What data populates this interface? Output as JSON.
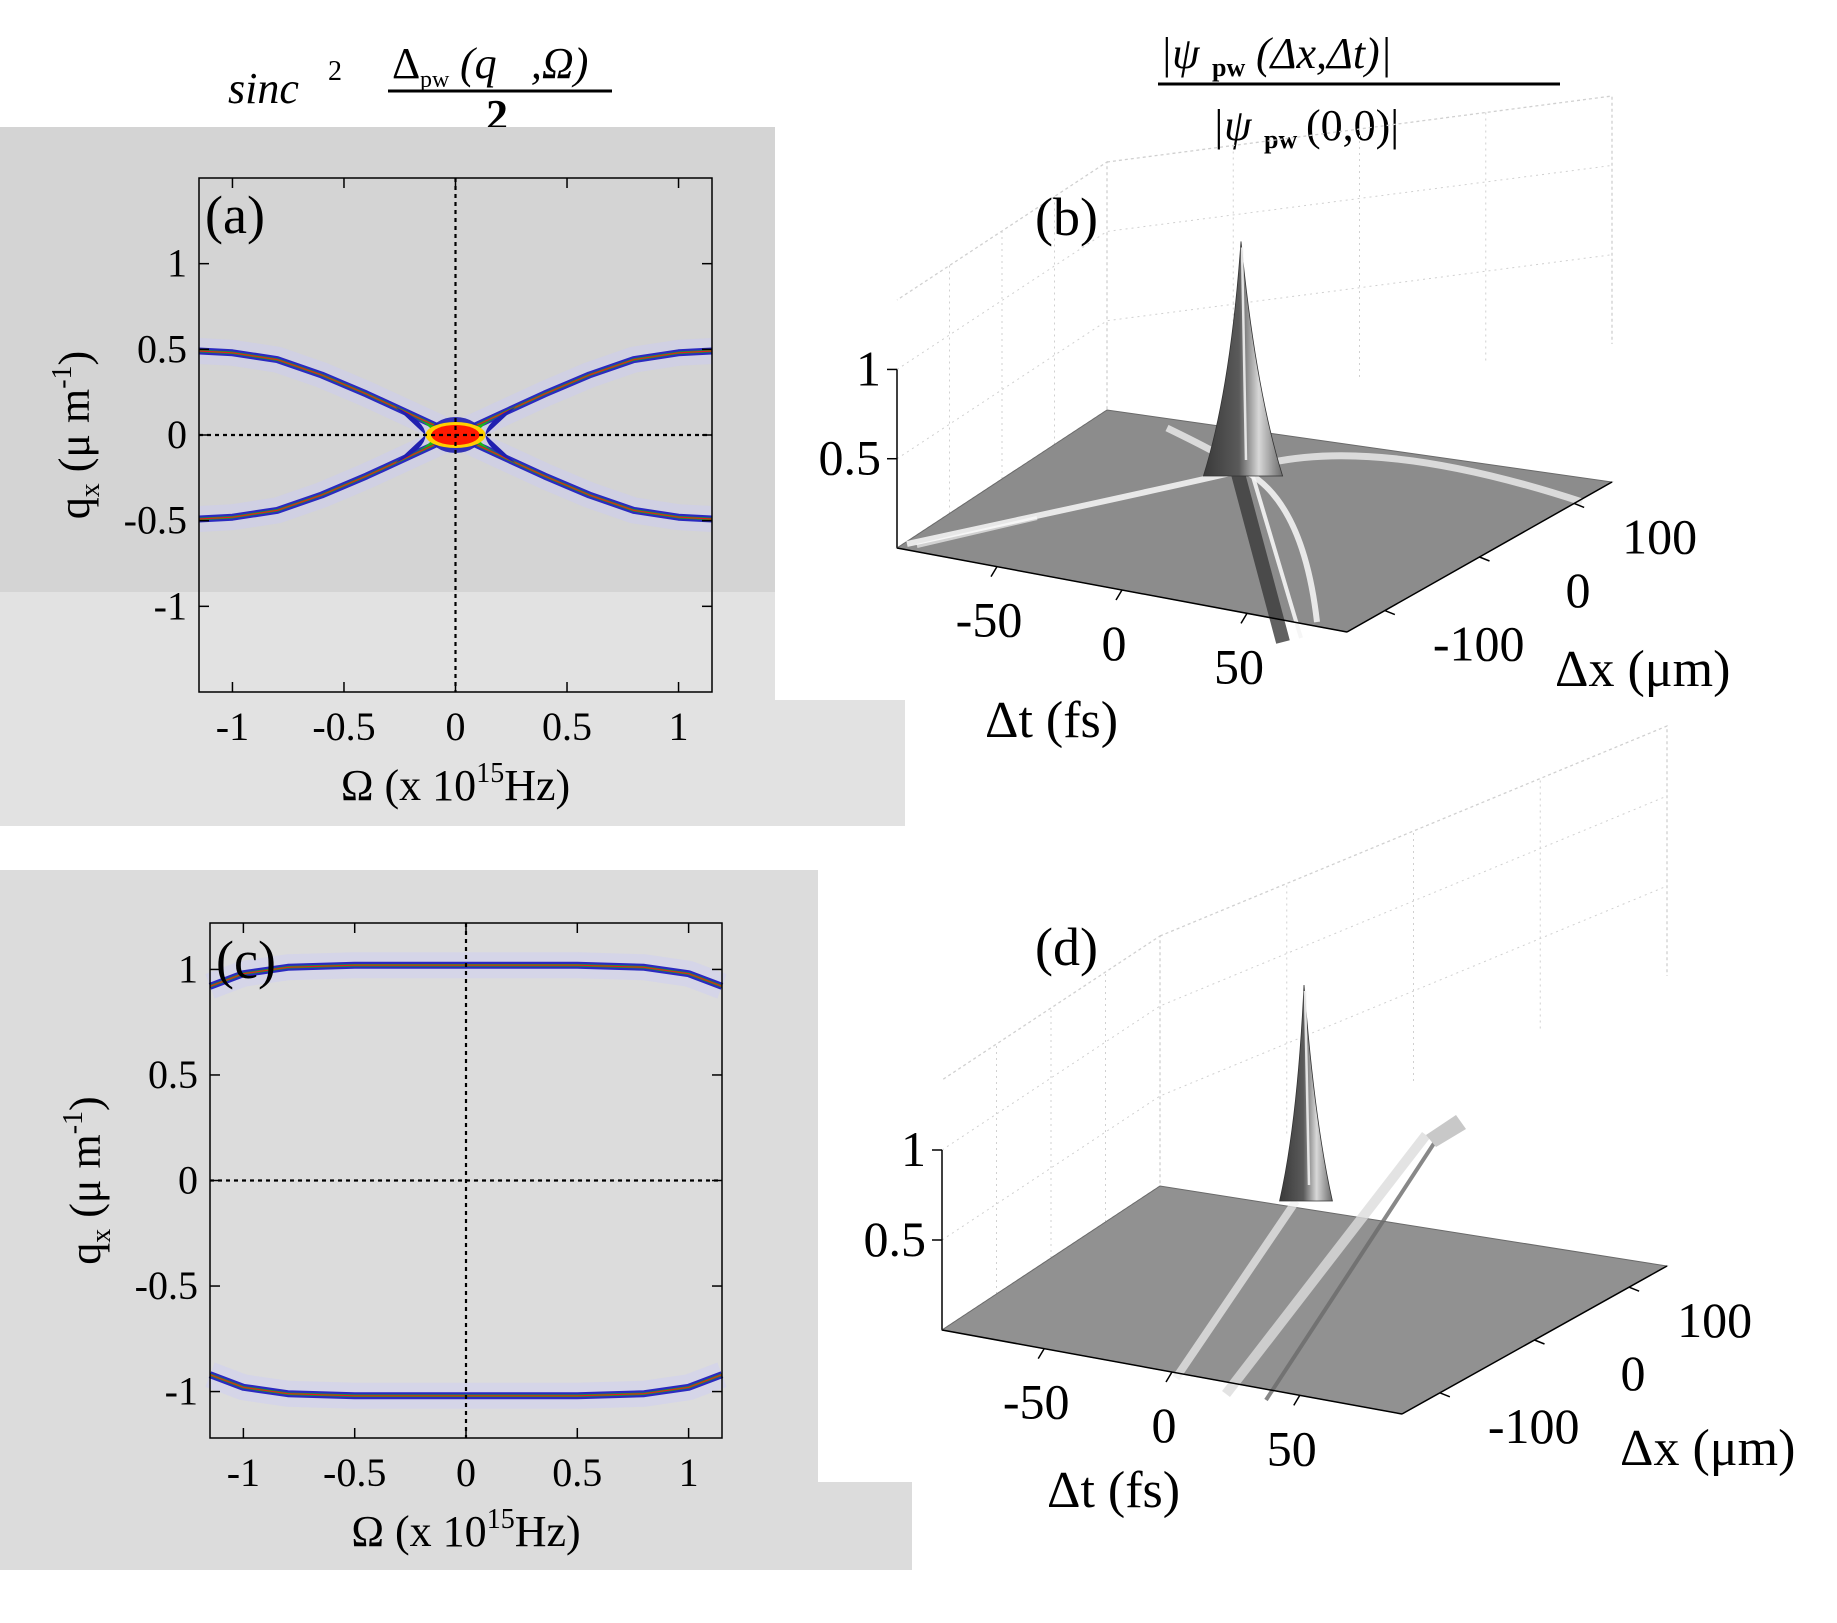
{
  "figure": {
    "title_left": {
      "main": "sinc",
      "exp": "2",
      "numerator": "Δ",
      "num_sub": "pw",
      "num_args": "(q⃗,Ω)",
      "denominator": "2"
    },
    "title_right": {
      "numerator": "|ψ",
      "num_sub": "pw",
      "num_args": "(Δx,Δt)|",
      "denominator": "|ψ",
      "den_sub": "pw",
      "den_args": "(0,0)|"
    }
  },
  "chart_data": [
    {
      "id": "a",
      "type": "heatmap",
      "panel_label": "(a)",
      "title": "sinc² Δpw(q,Ω)/2",
      "xlabel": "Ω  (x 10",
      "xlabel_sup": "15",
      "xlabel_tail": "Hz)",
      "ylabel_main": "q",
      "ylabel_sub": "x",
      "ylabel_unit": " (μ m",
      "ylabel_sup": "-1",
      "ylabel_close": ")",
      "xlim": [
        -1.15,
        1.15
      ],
      "ylim": [
        -1.5,
        1.5
      ],
      "xticks": [
        -1,
        -0.5,
        0,
        0.5,
        1
      ],
      "xtick_labels": [
        "-1",
        "-0.5",
        "0",
        "0.5",
        "1"
      ],
      "yticks": [
        1,
        0.5,
        0,
        -0.5,
        -1
      ],
      "ytick_labels": [
        "1",
        "0.5",
        "0",
        "-0.5",
        "-1"
      ],
      "curves": [
        {
          "name": "upper branch",
          "x": [
            -1.15,
            -1.0,
            -0.8,
            -0.6,
            -0.4,
            -0.2,
            0,
            0.2,
            0.4,
            0.6,
            0.8,
            1.0,
            1.15
          ],
          "y": [
            0.49,
            0.48,
            0.44,
            0.35,
            0.24,
            0.12,
            0,
            0.12,
            0.24,
            0.35,
            0.44,
            0.48,
            0.49
          ]
        },
        {
          "name": "lower branch",
          "x": [
            -1.15,
            -1.0,
            -0.8,
            -0.6,
            -0.4,
            -0.2,
            0,
            0.2,
            0.4,
            0.6,
            0.8,
            1.0,
            1.15
          ],
          "y": [
            -0.49,
            -0.48,
            -0.44,
            -0.35,
            -0.24,
            -0.12,
            0,
            -0.12,
            -0.24,
            -0.35,
            -0.44,
            -0.48,
            -0.49
          ]
        }
      ],
      "peak": {
        "x": 0,
        "y": 0,
        "value": 1
      }
    },
    {
      "id": "b",
      "type": "surface",
      "panel_label": "(b)",
      "title": "|ψpw(Δx,Δt)| / |ψpw(0,0)|",
      "xlabel": "Δt (fs)",
      "ylabel": "Δx (μm)",
      "xticks": [
        -50,
        0,
        50
      ],
      "xtick_labels": [
        "-50",
        "0",
        "50"
      ],
      "yticks": [
        100,
        0,
        -100
      ],
      "ytick_labels": [
        "100",
        "0",
        "-100"
      ],
      "zticks": [
        1,
        0.5
      ],
      "ztick_labels": [
        "1",
        "0.5"
      ],
      "zlim": [
        0,
        1
      ],
      "peak": {
        "dt": 0,
        "dx": 0,
        "value": 1
      },
      "background_level": 0.1
    },
    {
      "id": "c",
      "type": "heatmap",
      "panel_label": "(c)",
      "xlabel": "Ω  (x 10",
      "xlabel_sup": "15",
      "xlabel_tail": "Hz)",
      "ylabel_main": "q",
      "ylabel_sub": "x",
      "ylabel_unit": " (μ m",
      "ylabel_sup": "-1",
      "ylabel_close": ")",
      "xlim": [
        -1.15,
        1.15
      ],
      "ylim": [
        -1.22,
        1.22
      ],
      "xticks": [
        -1,
        -0.5,
        0,
        0.5,
        1
      ],
      "xtick_labels": [
        "-1",
        "-0.5",
        "0",
        "0.5",
        "1"
      ],
      "yticks": [
        1,
        0.5,
        0,
        -0.5,
        -1
      ],
      "ytick_labels": [
        "1",
        "0.5",
        "0",
        "-0.5",
        "-1"
      ],
      "curves": [
        {
          "name": "upper branch",
          "x": [
            -1.15,
            -1.0,
            -0.8,
            -0.5,
            0,
            0.5,
            0.8,
            1.0,
            1.15
          ],
          "y": [
            0.92,
            0.98,
            1.01,
            1.02,
            1.02,
            1.02,
            1.01,
            0.98,
            0.92
          ]
        },
        {
          "name": "lower branch",
          "x": [
            -1.15,
            -1.0,
            -0.8,
            -0.5,
            0,
            0.5,
            0.8,
            1.0,
            1.15
          ],
          "y": [
            -0.92,
            -0.98,
            -1.01,
            -1.02,
            -1.02,
            -1.02,
            -1.01,
            -0.98,
            -0.92
          ]
        }
      ]
    },
    {
      "id": "d",
      "type": "surface",
      "panel_label": "(d)",
      "xlabel": "Δt (fs)",
      "ylabel": "Δx (μm)",
      "xticks": [
        -50,
        0,
        50
      ],
      "xtick_labels": [
        "-50",
        "0",
        "50"
      ],
      "yticks": [
        100,
        0,
        -100
      ],
      "ytick_labels": [
        "100",
        "0",
        "-100"
      ],
      "zticks": [
        1,
        0.5
      ],
      "ztick_labels": [
        "1",
        "0.5"
      ],
      "zlim": [
        0,
        1
      ],
      "peak": {
        "dt": 0,
        "dx": 0,
        "value": 1
      },
      "background_level": 0.1
    }
  ]
}
